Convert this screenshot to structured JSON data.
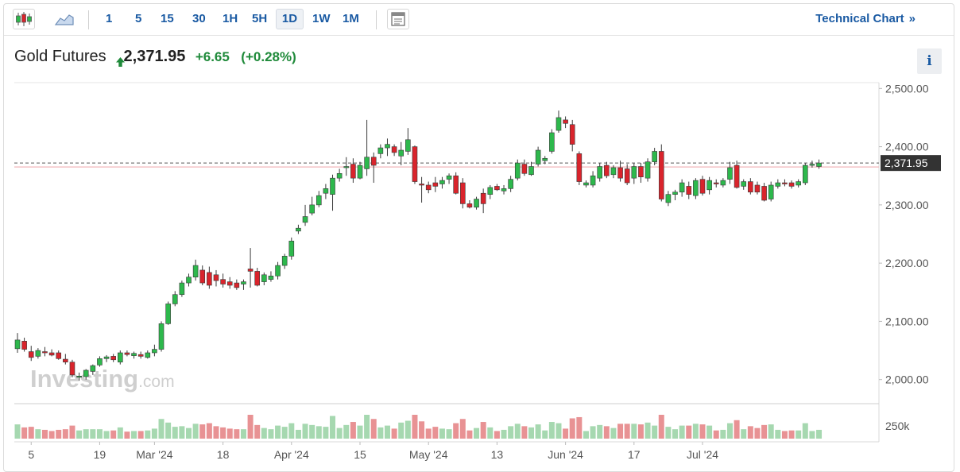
{
  "toolbar": {
    "chart_type_icons": [
      "candlestick-icon",
      "area-chart-icon"
    ],
    "timeframes": [
      "1",
      "5",
      "15",
      "30",
      "1H",
      "5H",
      "1D",
      "1W",
      "1M"
    ],
    "active_timeframe": "1D",
    "layout_icon": "layout-icon",
    "technical_chart_label": "Technical Chart",
    "technical_chart_chevron": "»"
  },
  "header": {
    "instrument": "Gold Futures",
    "direction": "up",
    "price": "2,371.95",
    "change": "+6.65",
    "change_pct": "(+0.28%)",
    "info_label": "i"
  },
  "watermark": {
    "brand": "Investing",
    "suffix": ".com"
  },
  "colors": {
    "up": "#2db84c",
    "down": "#d9242c",
    "volume_up": "#a6d8b0",
    "volume_down": "#e89294",
    "text_up": "#1f8a3a",
    "accent": "#1a5aa3",
    "price_tag": "#333333"
  },
  "chart_data": {
    "type": "candlestick",
    "ylim": [
      1960,
      2510
    ],
    "y_ticks": [
      2500,
      2400,
      2300,
      2200,
      2100,
      2000
    ],
    "y_tick_labels": [
      "2,500.00",
      "2,400.00",
      "2,300.00",
      "2,200.00",
      "2,100.00",
      "2,000.00"
    ],
    "x_tick_labels": [
      "5",
      "19",
      "Mar '24",
      "18",
      "Apr '24",
      "15",
      "May '24",
      "13",
      "Jun '24",
      "17",
      "Jul '24"
    ],
    "x_tick_index": [
      2,
      12,
      20,
      30,
      40,
      50,
      60,
      70,
      80,
      90,
      100
    ],
    "last_price_label": "2,371.95",
    "last_price": 2371.95,
    "volume_axis_label": "250k",
    "grid": false,
    "candles": [
      {
        "o": 2053,
        "h": 2080,
        "l": 2046,
        "c": 2068
      },
      {
        "o": 2066,
        "h": 2072,
        "l": 2048,
        "c": 2052
      },
      {
        "o": 2048,
        "h": 2058,
        "l": 2032,
        "c": 2038
      },
      {
        "o": 2040,
        "h": 2054,
        "l": 2036,
        "c": 2050
      },
      {
        "o": 2048,
        "h": 2056,
        "l": 2040,
        "c": 2046
      },
      {
        "o": 2046,
        "h": 2052,
        "l": 2040,
        "c": 2042
      },
      {
        "o": 2046,
        "h": 2050,
        "l": 2034,
        "c": 2036
      },
      {
        "o": 2035,
        "h": 2044,
        "l": 2026,
        "c": 2030
      },
      {
        "o": 2030,
        "h": 2034,
        "l": 2004,
        "c": 2008
      },
      {
        "o": 2004,
        "h": 2012,
        "l": 1998,
        "c": 2006
      },
      {
        "o": 2005,
        "h": 2018,
        "l": 2000,
        "c": 2016
      },
      {
        "o": 2014,
        "h": 2026,
        "l": 2008,
        "c": 2024
      },
      {
        "o": 2025,
        "h": 2040,
        "l": 2022,
        "c": 2036
      },
      {
        "o": 2036,
        "h": 2042,
        "l": 2030,
        "c": 2039
      },
      {
        "o": 2040,
        "h": 2044,
        "l": 2030,
        "c": 2034
      },
      {
        "o": 2030,
        "h": 2050,
        "l": 2026,
        "c": 2046
      },
      {
        "o": 2046,
        "h": 2050,
        "l": 2040,
        "c": 2043
      },
      {
        "o": 2041,
        "h": 2048,
        "l": 2036,
        "c": 2045
      },
      {
        "o": 2043,
        "h": 2048,
        "l": 2036,
        "c": 2040
      },
      {
        "o": 2038,
        "h": 2050,
        "l": 2036,
        "c": 2046
      },
      {
        "o": 2046,
        "h": 2060,
        "l": 2040,
        "c": 2052
      },
      {
        "o": 2052,
        "h": 2100,
        "l": 2048,
        "c": 2096
      },
      {
        "o": 2096,
        "h": 2134,
        "l": 2094,
        "c": 2130
      },
      {
        "o": 2130,
        "h": 2152,
        "l": 2126,
        "c": 2146
      },
      {
        "o": 2146,
        "h": 2170,
        "l": 2142,
        "c": 2166
      },
      {
        "o": 2166,
        "h": 2182,
        "l": 2160,
        "c": 2176
      },
      {
        "o": 2176,
        "h": 2206,
        "l": 2170,
        "c": 2196
      },
      {
        "o": 2188,
        "h": 2196,
        "l": 2162,
        "c": 2166
      },
      {
        "o": 2184,
        "h": 2194,
        "l": 2156,
        "c": 2162
      },
      {
        "o": 2180,
        "h": 2188,
        "l": 2160,
        "c": 2170
      },
      {
        "o": 2172,
        "h": 2182,
        "l": 2158,
        "c": 2164
      },
      {
        "o": 2168,
        "h": 2176,
        "l": 2156,
        "c": 2162
      },
      {
        "o": 2166,
        "h": 2172,
        "l": 2154,
        "c": 2158
      },
      {
        "o": 2164,
        "h": 2172,
        "l": 2154,
        "c": 2168
      },
      {
        "o": 2190,
        "h": 2226,
        "l": 2158,
        "c": 2186
      },
      {
        "o": 2186,
        "h": 2192,
        "l": 2160,
        "c": 2162
      },
      {
        "o": 2168,
        "h": 2184,
        "l": 2162,
        "c": 2180
      },
      {
        "o": 2172,
        "h": 2186,
        "l": 2168,
        "c": 2178
      },
      {
        "o": 2178,
        "h": 2202,
        "l": 2172,
        "c": 2196
      },
      {
        "o": 2196,
        "h": 2216,
        "l": 2190,
        "c": 2212
      },
      {
        "o": 2212,
        "h": 2244,
        "l": 2206,
        "c": 2238
      },
      {
        "o": 2255,
        "h": 2266,
        "l": 2250,
        "c": 2260
      },
      {
        "o": 2270,
        "h": 2300,
        "l": 2264,
        "c": 2280
      },
      {
        "o": 2286,
        "h": 2314,
        "l": 2282,
        "c": 2300
      },
      {
        "o": 2300,
        "h": 2324,
        "l": 2296,
        "c": 2316
      },
      {
        "o": 2320,
        "h": 2336,
        "l": 2310,
        "c": 2328
      },
      {
        "o": 2318,
        "h": 2352,
        "l": 2290,
        "c": 2346
      },
      {
        "o": 2346,
        "h": 2362,
        "l": 2340,
        "c": 2354
      },
      {
        "o": 2364,
        "h": 2382,
        "l": 2350,
        "c": 2366
      },
      {
        "o": 2370,
        "h": 2380,
        "l": 2338,
        "c": 2346
      },
      {
        "o": 2346,
        "h": 2374,
        "l": 2344,
        "c": 2368
      },
      {
        "o": 2362,
        "h": 2446,
        "l": 2350,
        "c": 2382
      },
      {
        "o": 2382,
        "h": 2390,
        "l": 2338,
        "c": 2368
      },
      {
        "o": 2388,
        "h": 2404,
        "l": 2380,
        "c": 2398
      },
      {
        "o": 2398,
        "h": 2414,
        "l": 2384,
        "c": 2404
      },
      {
        "o": 2400,
        "h": 2404,
        "l": 2384,
        "c": 2390
      },
      {
        "o": 2384,
        "h": 2408,
        "l": 2368,
        "c": 2394
      },
      {
        "o": 2392,
        "h": 2432,
        "l": 2386,
        "c": 2412
      },
      {
        "o": 2400,
        "h": 2402,
        "l": 2336,
        "c": 2340
      },
      {
        "o": 2336,
        "h": 2348,
        "l": 2304,
        "c": 2334
      },
      {
        "o": 2334,
        "h": 2340,
        "l": 2320,
        "c": 2326
      },
      {
        "o": 2338,
        "h": 2348,
        "l": 2322,
        "c": 2332
      },
      {
        "o": 2336,
        "h": 2348,
        "l": 2328,
        "c": 2342
      },
      {
        "o": 2344,
        "h": 2354,
        "l": 2336,
        "c": 2350
      },
      {
        "o": 2350,
        "h": 2356,
        "l": 2318,
        "c": 2320
      },
      {
        "o": 2338,
        "h": 2346,
        "l": 2294,
        "c": 2302
      },
      {
        "o": 2302,
        "h": 2308,
        "l": 2294,
        "c": 2296
      },
      {
        "o": 2296,
        "h": 2314,
        "l": 2292,
        "c": 2310
      },
      {
        "o": 2320,
        "h": 2328,
        "l": 2286,
        "c": 2302
      },
      {
        "o": 2318,
        "h": 2334,
        "l": 2310,
        "c": 2330
      },
      {
        "o": 2332,
        "h": 2336,
        "l": 2324,
        "c": 2326
      },
      {
        "o": 2324,
        "h": 2334,
        "l": 2318,
        "c": 2328
      },
      {
        "o": 2328,
        "h": 2350,
        "l": 2322,
        "c": 2344
      },
      {
        "o": 2346,
        "h": 2378,
        "l": 2342,
        "c": 2372
      },
      {
        "o": 2370,
        "h": 2378,
        "l": 2350,
        "c": 2354
      },
      {
        "o": 2352,
        "h": 2374,
        "l": 2350,
        "c": 2366
      },
      {
        "o": 2370,
        "h": 2400,
        "l": 2366,
        "c": 2394
      },
      {
        "o": 2376,
        "h": 2384,
        "l": 2370,
        "c": 2380
      },
      {
        "o": 2392,
        "h": 2430,
        "l": 2388,
        "c": 2424
      },
      {
        "o": 2428,
        "h": 2462,
        "l": 2424,
        "c": 2450
      },
      {
        "o": 2446,
        "h": 2452,
        "l": 2432,
        "c": 2440
      },
      {
        "o": 2438,
        "h": 2446,
        "l": 2392,
        "c": 2404
      },
      {
        "o": 2388,
        "h": 2392,
        "l": 2334,
        "c": 2340
      },
      {
        "o": 2334,
        "h": 2342,
        "l": 2330,
        "c": 2338
      },
      {
        "o": 2334,
        "h": 2358,
        "l": 2330,
        "c": 2350
      },
      {
        "o": 2346,
        "h": 2372,
        "l": 2340,
        "c": 2366
      },
      {
        "o": 2368,
        "h": 2374,
        "l": 2346,
        "c": 2350
      },
      {
        "o": 2352,
        "h": 2368,
        "l": 2346,
        "c": 2364
      },
      {
        "o": 2364,
        "h": 2376,
        "l": 2340,
        "c": 2346
      },
      {
        "o": 2362,
        "h": 2370,
        "l": 2334,
        "c": 2338
      },
      {
        "o": 2346,
        "h": 2372,
        "l": 2336,
        "c": 2366
      },
      {
        "o": 2366,
        "h": 2372,
        "l": 2338,
        "c": 2348
      },
      {
        "o": 2346,
        "h": 2380,
        "l": 2340,
        "c": 2374
      },
      {
        "o": 2374,
        "h": 2398,
        "l": 2368,
        "c": 2392
      },
      {
        "o": 2392,
        "h": 2404,
        "l": 2306,
        "c": 2310
      },
      {
        "o": 2304,
        "h": 2324,
        "l": 2298,
        "c": 2318
      },
      {
        "o": 2318,
        "h": 2326,
        "l": 2308,
        "c": 2322
      },
      {
        "o": 2322,
        "h": 2344,
        "l": 2314,
        "c": 2338
      },
      {
        "o": 2332,
        "h": 2340,
        "l": 2310,
        "c": 2318
      },
      {
        "o": 2316,
        "h": 2346,
        "l": 2310,
        "c": 2342
      },
      {
        "o": 2344,
        "h": 2350,
        "l": 2316,
        "c": 2320
      },
      {
        "o": 2326,
        "h": 2348,
        "l": 2318,
        "c": 2342
      },
      {
        "o": 2338,
        "h": 2344,
        "l": 2330,
        "c": 2336
      },
      {
        "o": 2334,
        "h": 2346,
        "l": 2330,
        "c": 2342
      },
      {
        "o": 2344,
        "h": 2374,
        "l": 2336,
        "c": 2364
      },
      {
        "o": 2368,
        "h": 2376,
        "l": 2328,
        "c": 2330
      },
      {
        "o": 2332,
        "h": 2344,
        "l": 2326,
        "c": 2340
      },
      {
        "o": 2340,
        "h": 2346,
        "l": 2318,
        "c": 2322
      },
      {
        "o": 2334,
        "h": 2340,
        "l": 2318,
        "c": 2322
      },
      {
        "o": 2332,
        "h": 2338,
        "l": 2306,
        "c": 2308
      },
      {
        "o": 2310,
        "h": 2340,
        "l": 2306,
        "c": 2334
      },
      {
        "o": 2332,
        "h": 2344,
        "l": 2328,
        "c": 2338
      },
      {
        "o": 2338,
        "h": 2344,
        "l": 2332,
        "c": 2336
      },
      {
        "o": 2338,
        "h": 2342,
        "l": 2328,
        "c": 2332
      },
      {
        "o": 2334,
        "h": 2344,
        "l": 2330,
        "c": 2340
      },
      {
        "o": 2338,
        "h": 2372,
        "l": 2334,
        "c": 2368
      },
      {
        "o": 2368,
        "h": 2376,
        "l": 2364,
        "c": 2370
      },
      {
        "o": 2366,
        "h": 2378,
        "l": 2362,
        "c": 2372
      }
    ]
  }
}
